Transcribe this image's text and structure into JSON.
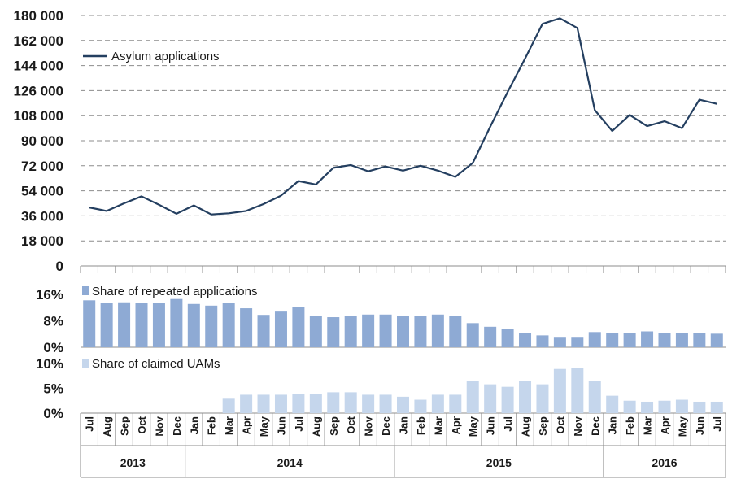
{
  "chart_data": [
    {
      "type": "line",
      "panel": "asylum",
      "series": [
        {
          "name": "Asylum applications",
          "color": "#243f60",
          "values": [
            42000,
            39500,
            45000,
            50000,
            44000,
            37500,
            43500,
            37000,
            37800,
            39500,
            44500,
            50500,
            61000,
            58500,
            70500,
            72500,
            68000,
            71500,
            68500,
            72000,
            68500,
            64000,
            74000,
            100000,
            125000,
            149000,
            174000,
            178000,
            171000,
            112000,
            97000,
            108500,
            100500,
            104000,
            99000,
            119500,
            116500
          ]
        }
      ],
      "yticks": [
        0,
        18000,
        36000,
        54000,
        72000,
        90000,
        108000,
        126000,
        144000,
        162000,
        180000
      ],
      "ytick_labels": [
        "0",
        "18 000",
        "36 000",
        "54 000",
        "72 000",
        "90 000",
        "108 000",
        "126 000",
        "144 000",
        "162 000",
        "180 000"
      ],
      "ylim": [
        0,
        180000
      ],
      "legend": "top-left"
    },
    {
      "type": "bar",
      "panel": "repeated",
      "series": [
        {
          "name": "Share of repeated applications",
          "color": "#8eaad4",
          "values": [
            14.2,
            13.5,
            13.6,
            13.5,
            13.4,
            14.6,
            13.1,
            12.6,
            13.3,
            11.8,
            9.8,
            10.8,
            12.1,
            9.4,
            9.1,
            9.4,
            9.9,
            9.9,
            9.6,
            9.4,
            9.9,
            9.6,
            7.3,
            6.2,
            5.6,
            4.3,
            3.6,
            2.9,
            2.9,
            4.6,
            4.3,
            4.3,
            4.8,
            4.3,
            4.3,
            4.3,
            4.1
          ]
        }
      ],
      "yticks": [
        0,
        8,
        16
      ],
      "ytick_labels": [
        "0%",
        "8%",
        "16%"
      ],
      "ylim": [
        0,
        16
      ],
      "legend": "top-left"
    },
    {
      "type": "bar",
      "panel": "uam",
      "series": [
        {
          "name": "Share of claimed UAMs",
          "color": "#c5d6ec",
          "values": [
            null,
            null,
            null,
            null,
            null,
            null,
            null,
            null,
            2.9,
            3.7,
            3.7,
            3.7,
            3.9,
            3.9,
            4.2,
            4.2,
            3.7,
            3.7,
            3.3,
            2.7,
            3.7,
            3.7,
            6.4,
            5.8,
            5.3,
            6.4,
            5.8,
            8.9,
            9.1,
            6.4,
            3.5,
            2.5,
            2.3,
            2.5,
            2.7,
            2.3,
            2.3
          ]
        }
      ],
      "yticks": [
        0,
        5,
        10
      ],
      "ytick_labels": [
        "0%",
        "5%",
        "10%"
      ],
      "ylim": [
        0,
        10
      ],
      "legend": "top-left"
    }
  ],
  "months": [
    "Jul",
    "Aug",
    "Sep",
    "Oct",
    "Nov",
    "Dec",
    "Jan",
    "Feb",
    "Mar",
    "Apr",
    "May",
    "Jun",
    "Jul",
    "Aug",
    "Sep",
    "Oct",
    "Nov",
    "Dec",
    "Jan",
    "Feb",
    "Mar",
    "Apr",
    "May",
    "Jun",
    "Jul",
    "Aug",
    "Sep",
    "Oct",
    "Nov",
    "Dec",
    "Jan",
    "Feb",
    "Mar",
    "Apr",
    "May",
    "Jun",
    "Jul"
  ],
  "years": [
    {
      "label": "2013",
      "start": 0,
      "count": 6
    },
    {
      "label": "2014",
      "start": 6,
      "count": 12
    },
    {
      "label": "2015",
      "start": 18,
      "count": 12
    },
    {
      "label": "2016",
      "start": 30,
      "count": 7
    }
  ]
}
